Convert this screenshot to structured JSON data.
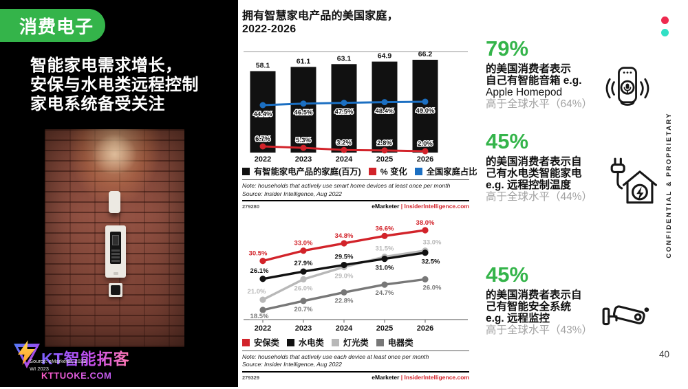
{
  "page": {
    "number": "40",
    "confidential": "CONFIDENTIAL & PROPRIETARY",
    "dot_colors": [
      "#ee2a4f",
      "#31e0c5"
    ],
    "accent_green": "#34b44a"
  },
  "left_panel": {
    "badge": "消费电子",
    "headline": [
      "智能家电需求增长，",
      "安保与水电类远程控制",
      "家电系统备受关注"
    ],
    "logo": {
      "brand": "KT智能拓客",
      "site": "KTTUOKE.COM",
      "source_note": [
        "Source: eMarketer, 2023",
        "WI 2023"
      ]
    }
  },
  "charts_header": {
    "title_line1": "拥有智慧家电产品的美国家庭，",
    "title_line2": "2022-2026"
  },
  "chart_data": [
    {
      "type": "bar",
      "title": "拥有智慧家电产品的美国家庭，2022-2026",
      "categories": [
        "2022",
        "2023",
        "2024",
        "2025",
        "2026"
      ],
      "bar_series": {
        "name": "有智能家电产品的家庭(百万)",
        "color": "#111111",
        "values": [
          58.1,
          61.1,
          63.1,
          64.9,
          66.2
        ]
      },
      "line_series": [
        {
          "name": "% 变化",
          "color": "#d2232a",
          "values": [
            6.7,
            5.3,
            3.2,
            2.8,
            2.0
          ]
        },
        {
          "name": "全国家庭占比",
          "color": "#1b6fc2",
          "values": [
            44.4,
            46.5,
            47.5,
            48.4,
            49.0
          ]
        }
      ],
      "ylim": [
        0,
        70
      ],
      "grid": false,
      "legend_position": "bottom",
      "note": "Note: households that actively use smart home devices at least once per month",
      "source": "Source: Insider Intelligence, Aug 2022",
      "chart_id": "279280",
      "brand": "eMarketer",
      "brand_site": "InsiderIntelligence.com"
    },
    {
      "type": "line",
      "categories": [
        "2022",
        "2023",
        "2024",
        "2025",
        "2026"
      ],
      "series": [
        {
          "name": "安保类",
          "color": "#d2232a",
          "values": [
            30.5,
            33.0,
            34.8,
            36.6,
            38.0
          ]
        },
        {
          "name": "水电类",
          "color": "#111111",
          "values": [
            26.1,
            27.9,
            29.5,
            31.0,
            32.5
          ]
        },
        {
          "name": "灯光类",
          "color": "#b8b8b8",
          "values": [
            21.0,
            26.0,
            29.0,
            31.5,
            33.0
          ]
        },
        {
          "name": "电器类",
          "color": "#787878",
          "values": [
            18.5,
            20.7,
            22.8,
            24.7,
            26.0
          ]
        }
      ],
      "ylim": [
        15,
        40
      ],
      "grid": false,
      "legend_position": "bottom",
      "note": "Note: households that actively use each device at least once per month",
      "source": "Source: Insider Intelligence, Aug 2022",
      "chart_id": "279329",
      "brand": "eMarketer",
      "brand_site": "InsiderIntelligence.com"
    }
  ],
  "stats": [
    {
      "value": "79%",
      "lines": [
        "的美国消费者表示",
        "自己有智能音箱 e.g.",
        "Apple Homepod"
      ],
      "global": "高于全球水平（64%）",
      "icon": "smart-speaker-icon"
    },
    {
      "value": "45%",
      "lines": [
        "的美国消费者表示自",
        "己有水电类智能家电",
        "e.g. 远程控制温度"
      ],
      "global": "高于全球水平（44%）",
      "icon": "smart-home-energy-icon"
    },
    {
      "value": "45%",
      "lines": [
        "的美国消费者表示自",
        "己有智能安全系统",
        "e.g. 远程监控"
      ],
      "global": "高于全球水平（43%）",
      "icon": "security-camera-icon"
    }
  ]
}
